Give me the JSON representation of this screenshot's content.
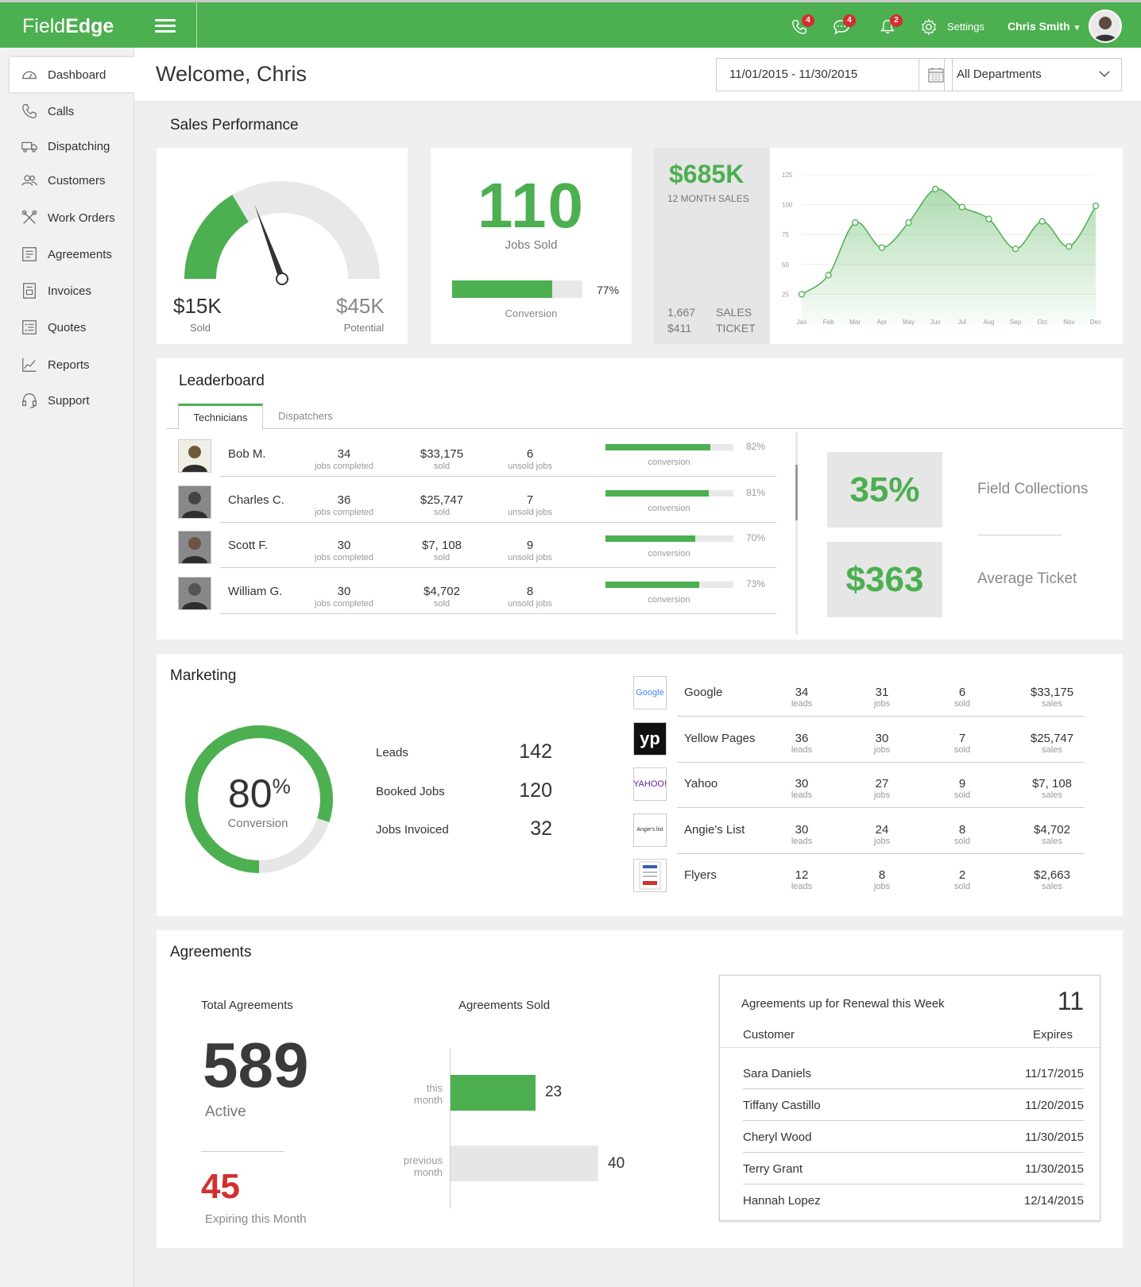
{
  "app": {
    "logo_light": "Field",
    "logo_bold": "Edge",
    "badges": {
      "calls": "4",
      "messages": "4",
      "alerts": "2"
    },
    "settings_label": "Settings",
    "user_name": "Chris Smith"
  },
  "sidebar": {
    "items": [
      {
        "label": "Dashboard",
        "icon": "dashboard-icon",
        "active": true
      },
      {
        "label": "Calls",
        "icon": "phone-icon"
      },
      {
        "label": "Dispatching",
        "icon": "truck-icon"
      },
      {
        "label": "Customers",
        "icon": "people-icon"
      },
      {
        "label": "Work Orders",
        "icon": "tools-icon"
      },
      {
        "label": "Agreements",
        "icon": "document-icon"
      },
      {
        "label": "Invoices",
        "icon": "invoice-icon"
      },
      {
        "label": "Quotes",
        "icon": "checklist-icon"
      },
      {
        "label": "Reports",
        "icon": "chart-icon"
      },
      {
        "label": "Support",
        "icon": "headset-icon"
      }
    ]
  },
  "header": {
    "welcome": "Welcome, Chris",
    "date_range": "11/01/2015 - 11/30/2015",
    "department": "All Departments"
  },
  "sales": {
    "title": "Sales Performance",
    "gauge": {
      "sold_value": "$15K",
      "sold_label": "Sold",
      "potential_value": "$45K",
      "potential_label": "Potential",
      "fill_fraction": 0.33
    },
    "jobs_sold": "110",
    "jobs_sold_label": "Jobs Sold",
    "conversion_pct": "77%",
    "conversion_fraction": 0.77,
    "conversion_label": "Conversion",
    "twelve_month_value": "$685K",
    "twelve_month_label": "12 MONTH SALES",
    "count_value": "1,667",
    "ticket_value": "$411",
    "sales_label": "SALES",
    "ticket_label": "TICKET"
  },
  "chart_data": {
    "type": "area",
    "categories": [
      "Jan",
      "Feb",
      "Mar",
      "Apr",
      "May",
      "Jun",
      "Jul",
      "Aug",
      "Sep",
      "Oct",
      "Nov",
      "Dec"
    ],
    "series": [
      {
        "values": [
          25,
          41,
          85,
          64,
          85,
          113,
          98,
          88,
          63,
          86,
          65,
          99
        ]
      }
    ],
    "ylim": [
      0,
      125
    ],
    "yticks": [
      25,
      50,
      75,
      100,
      125
    ],
    "grid": true,
    "color": "#4caf50"
  },
  "leaderboard": {
    "title": "Leaderboard",
    "tabs": [
      "Technicians",
      "Dispatchers"
    ],
    "sub_jobs": "jobs completed",
    "sub_sold": "sold",
    "sub_unsold": "unsold jobs",
    "sub_conv": "conversion",
    "rows": [
      {
        "name": "Bob M.",
        "jobs": "34",
        "sold": "$33,175",
        "unsold": "6",
        "conv": "82%",
        "frac": 0.82
      },
      {
        "name": "Charles C.",
        "jobs": "36",
        "sold": "$25,747",
        "unsold": "7",
        "conv": "81%",
        "frac": 0.81
      },
      {
        "name": "Scott F.",
        "jobs": "30",
        "sold": "$7, 108",
        "unsold": "9",
        "conv": "70%",
        "frac": 0.7
      },
      {
        "name": "William G.",
        "jobs": "30",
        "sold": "$4,702",
        "unsold": "8",
        "conv": "73%",
        "frac": 0.73
      }
    ],
    "field_collections_value": "35%",
    "field_collections_label": "Field Collections",
    "avg_ticket_value": "$363",
    "avg_ticket_label": "Average Ticket"
  },
  "marketing": {
    "title": "Marketing",
    "conversion_value": "80",
    "conversion_unit": "%",
    "conversion_label": "Conversion",
    "conversion_fraction": 0.8,
    "leads_label": "Leads",
    "leads": "142",
    "booked_label": "Booked Jobs",
    "booked": "120",
    "invoiced_label": "Jobs Invoiced",
    "invoiced": "32",
    "sub_leads": "leads",
    "sub_jobs": "jobs",
    "sub_sold": "sold",
    "sub_sales": "sales",
    "sources": [
      {
        "name": "Google",
        "logo": "Google",
        "leads": "34",
        "jobs": "31",
        "sold": "6",
        "sales": "$33,175"
      },
      {
        "name": "Yellow Pages",
        "logo": "yp",
        "leads": "36",
        "jobs": "30",
        "sold": "7",
        "sales": "$25,747"
      },
      {
        "name": "Yahoo",
        "logo": "YAHOO!",
        "leads": "30",
        "jobs": "27",
        "sold": "9",
        "sales": "$7, 108"
      },
      {
        "name": "Angie's List",
        "logo": "Angie's list",
        "leads": "30",
        "jobs": "24",
        "sold": "8",
        "sales": "$4,702"
      },
      {
        "name": "Flyers",
        "logo": "flyer-icon",
        "leads": "12",
        "jobs": "8",
        "sold": "2",
        "sales": "$2,663"
      }
    ]
  },
  "agreements": {
    "title": "Agreements",
    "total_label": "Total Agreements",
    "total": "589",
    "active_label": "Active",
    "expiring": "45",
    "expiring_label": "Expiring this Month",
    "sold_label": "Agreements Sold",
    "this_month_label_1": "this",
    "this_month_label_2": "month",
    "this_month": "23",
    "this_month_value": 23,
    "prev_month_label_1": "previous",
    "prev_month_label_2": "month",
    "prev_month": "40",
    "prev_month_value": 40,
    "renewal_title": "Agreements up for Renewal this Week",
    "renewal_count": "11",
    "col_customer": "Customer",
    "col_expires": "Expires",
    "renewals": [
      {
        "customer": "Sara Daniels",
        "expires": "11/17/2015"
      },
      {
        "customer": "Tiffany Castillo",
        "expires": "11/20/2015"
      },
      {
        "customer": "Cheryl Wood",
        "expires": "11/30/2015"
      },
      {
        "customer": "Terry Grant",
        "expires": "11/30/2015"
      },
      {
        "customer": "Hannah Lopez",
        "expires": "12/14/2015"
      }
    ]
  }
}
